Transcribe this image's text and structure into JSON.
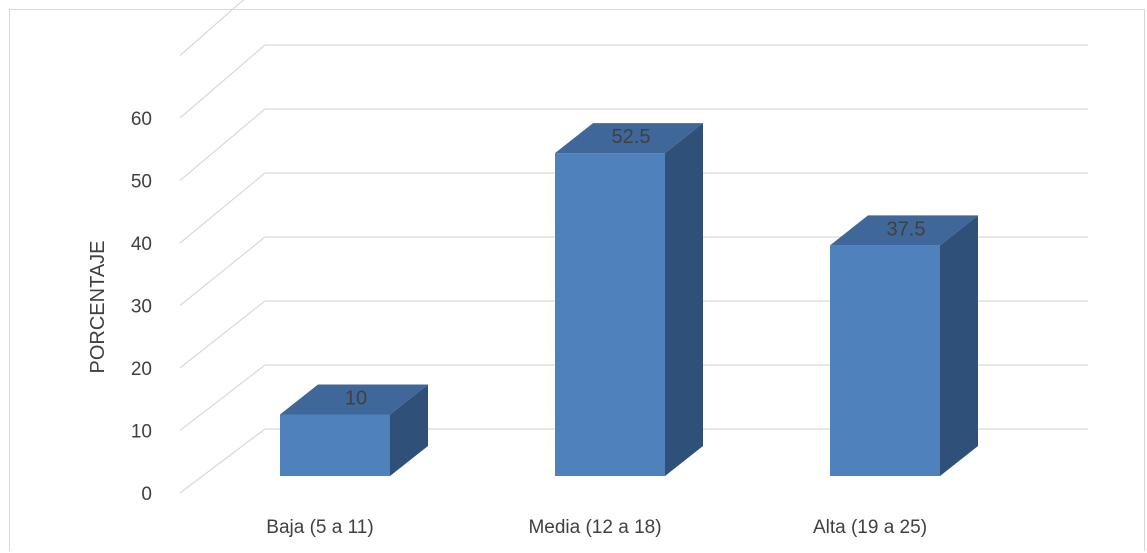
{
  "chart_data": {
    "type": "bar",
    "style": "3d-column",
    "categories": [
      "Baja (5 a 11)",
      "Media (12 a 18)",
      "Alta (19 a 25)"
    ],
    "values": [
      10,
      52.5,
      37.5
    ],
    "data_labels": [
      "10",
      "52.5",
      "37.5"
    ],
    "title": "",
    "xlabel": "",
    "ylabel": "PORCENTAJE",
    "ylim": [
      0,
      60
    ],
    "yticks": [
      0,
      10,
      20,
      30,
      40,
      50,
      60
    ],
    "grid": true,
    "legend": "none",
    "colors": {
      "bar_front": "#4f81bd",
      "bar_top": "#3f679a",
      "bar_side": "#2f5079",
      "grid": "#d9d9d9",
      "text": "#404040"
    }
  }
}
